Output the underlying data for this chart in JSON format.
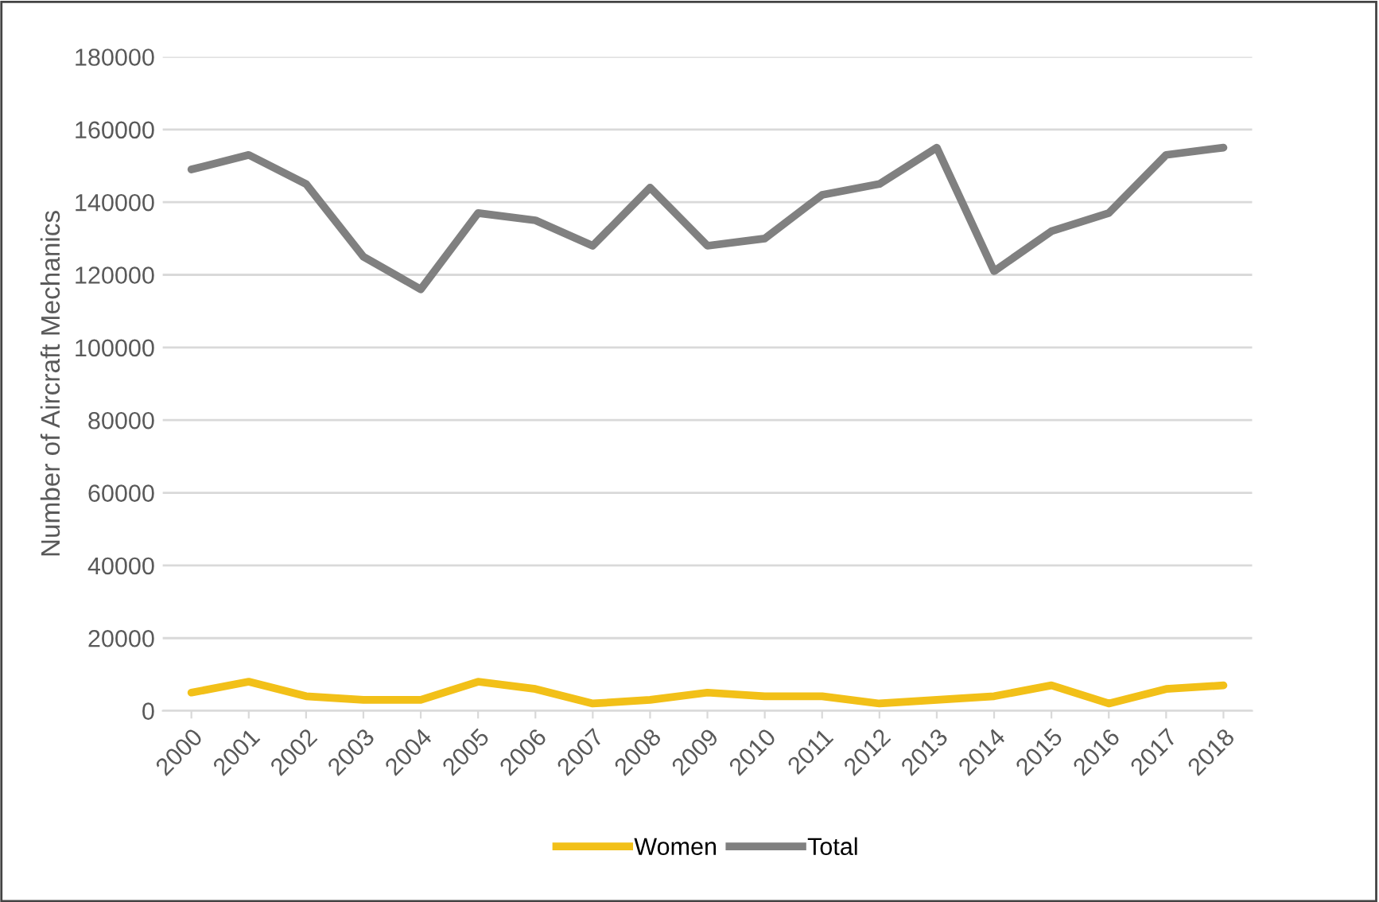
{
  "chart_data": {
    "type": "line",
    "ylabel": "Number of Aircraft Mechanics",
    "categories": [
      "2000",
      "2001",
      "2002",
      "2003",
      "2004",
      "2005",
      "2006",
      "2007",
      "2008",
      "2009",
      "2010",
      "2011",
      "2012",
      "2013",
      "2014",
      "2015",
      "2016",
      "2017",
      "2018"
    ],
    "series": [
      {
        "name": "Women",
        "color": "#f2c018",
        "values": [
          5000,
          8000,
          4000,
          3000,
          3000,
          8000,
          6000,
          2000,
          3000,
          5000,
          4000,
          4000,
          2000,
          3000,
          4000,
          7000,
          2000,
          6000,
          7000
        ]
      },
      {
        "name": "Total",
        "color": "#808080",
        "values": [
          149000,
          153000,
          145000,
          125000,
          116000,
          137000,
          135000,
          128000,
          144000,
          128000,
          130000,
          142000,
          145000,
          155000,
          121000,
          132000,
          137000,
          153000,
          155000
        ]
      }
    ],
    "ylim": [
      0,
      180000
    ],
    "yticks": [
      0,
      20000,
      40000,
      60000,
      80000,
      100000,
      120000,
      140000,
      160000,
      180000
    ],
    "grid": "y",
    "legend": "bottom",
    "marker": "none",
    "line_style": "solid"
  }
}
